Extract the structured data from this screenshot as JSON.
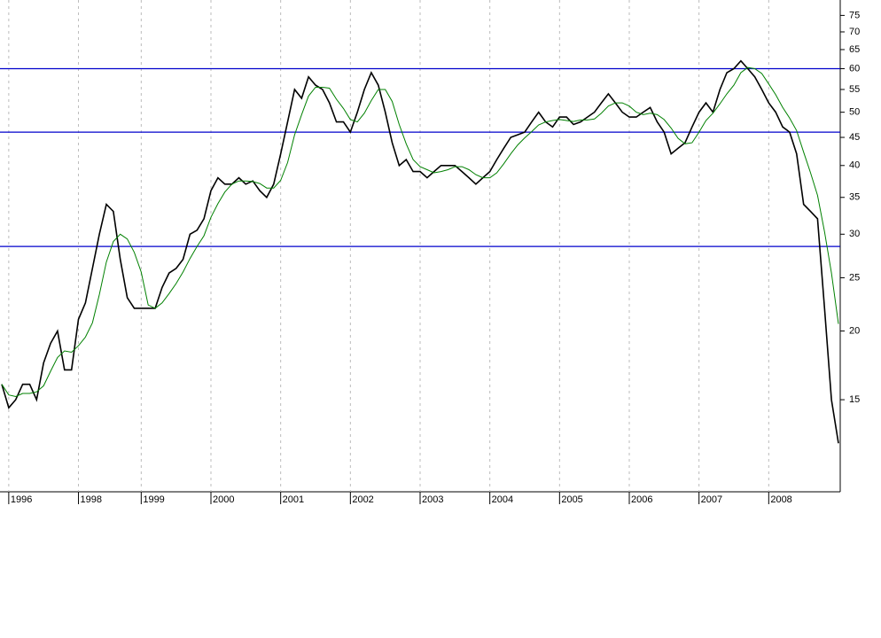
{
  "chart_data": {
    "type": "line",
    "log_scale": true,
    "grid": true,
    "x": [
      0,
      1,
      2,
      3,
      4,
      5,
      6,
      7,
      8,
      9,
      10,
      11,
      12,
      13,
      14,
      15,
      16,
      17,
      18,
      19,
      20,
      21,
      22,
      23,
      24,
      25,
      26,
      27,
      28,
      29,
      30,
      31,
      32,
      33,
      34,
      35,
      36,
      37,
      38,
      39,
      40,
      41,
      42,
      43,
      44,
      45,
      46,
      47,
      48,
      49,
      50,
      51,
      52,
      53,
      54,
      55,
      56,
      57,
      58,
      59,
      60,
      61,
      62,
      63,
      64,
      65,
      66,
      67,
      68,
      69,
      70,
      71,
      72,
      73,
      74,
      75,
      76,
      77,
      78,
      79,
      80,
      81,
      82,
      83,
      84,
      85,
      86,
      87,
      88,
      89,
      90,
      91,
      92,
      93,
      94,
      95,
      96,
      97,
      98,
      99,
      100,
      101,
      102,
      103,
      104,
      105,
      106,
      107,
      108,
      109,
      110,
      111,
      112,
      113,
      114,
      115,
      116,
      117,
      118,
      119,
      120
    ],
    "xlim": [
      0,
      120
    ],
    "xticks": [
      {
        "value": 1,
        "label": "1996"
      },
      {
        "value": 11,
        "label": "1998"
      },
      {
        "value": 20,
        "label": "1999"
      },
      {
        "value": 30,
        "label": "2000"
      },
      {
        "value": 40,
        "label": "2001"
      },
      {
        "value": 50,
        "label": "2002"
      },
      {
        "value": 60,
        "label": "2003"
      },
      {
        "value": 70,
        "label": "2004"
      },
      {
        "value": 80,
        "label": "2005"
      },
      {
        "value": 90,
        "label": "2006"
      },
      {
        "value": 100,
        "label": "2007"
      },
      {
        "value": 110,
        "label": "2008"
      }
    ],
    "ylim": [
      10.2,
      80
    ],
    "yticks": [
      15,
      20,
      25,
      30,
      35,
      40,
      45,
      50,
      55,
      60,
      65,
      70,
      75
    ],
    "hlines": [
      60,
      46,
      28.5
    ],
    "hline_color": "#0000cc",
    "series": [
      {
        "color": "#000000",
        "values": [
          16,
          14.5,
          15,
          16,
          16,
          15,
          17.5,
          19,
          20,
          17,
          17,
          21,
          22.5,
          26,
          30,
          34,
          33,
          27,
          23,
          22,
          22,
          22,
          22,
          24,
          25.5,
          26,
          27,
          30,
          30.5,
          32,
          36,
          38,
          37,
          37,
          38,
          37,
          37.5,
          36,
          35,
          37,
          42,
          48,
          55,
          53,
          58,
          56,
          55,
          52,
          48,
          48,
          46,
          50,
          55,
          59,
          56,
          50,
          44,
          40,
          41,
          39,
          39,
          38,
          39,
          40,
          40,
          40,
          39,
          38,
          37,
          38,
          39,
          41,
          43,
          45,
          45.5,
          46,
          48,
          50,
          48,
          47,
          49,
          49,
          47.5,
          48,
          49,
          50,
          52,
          54,
          52,
          50,
          49,
          49,
          50,
          51,
          48,
          46,
          42,
          43,
          44,
          47,
          50,
          52,
          50,
          55,
          59,
          60,
          62,
          60,
          58,
          55,
          52,
          50,
          47,
          46,
          42,
          34,
          33,
          32,
          22,
          15,
          12.5
        ]
      },
      {
        "color": "#008000",
        "values": [
          16,
          15.3,
          15.2,
          15.4,
          15.4,
          15.5,
          15.9,
          16.9,
          17.9,
          18.4,
          18.3,
          18.8,
          19.5,
          20.7,
          23.3,
          26.7,
          29.1,
          30,
          29.4,
          27.8,
          25.6,
          22.3,
          22,
          22.5,
          23.4,
          24.4,
          25.6,
          27.1,
          28.5,
          29.8,
          32.2,
          34.1,
          35.8,
          37,
          37.5,
          37.5,
          37.4,
          37.1,
          36.4,
          36.4,
          37.6,
          40.5,
          45.5,
          49.5,
          53.5,
          55.5,
          55.5,
          55.3,
          52.8,
          50.8,
          48.5,
          48,
          49.8,
          52.5,
          55,
          55,
          52.3,
          47.5,
          43.8,
          41,
          39.8,
          39.3,
          38.8,
          39,
          39.3,
          39.8,
          39.8,
          39.3,
          38.5,
          38,
          38,
          38.8,
          40.3,
          42,
          43.6,
          44.9,
          46.1,
          47.4,
          48,
          48.3,
          48.5,
          48.3,
          48.1,
          48.4,
          48.4,
          48.6,
          49.8,
          51.3,
          52,
          52,
          51.3,
          50,
          49.5,
          49.8,
          49.5,
          48.5,
          46.8,
          44.8,
          43.8,
          44,
          46,
          48.3,
          49.8,
          51.8,
          54,
          56,
          59,
          60.3,
          60,
          58.8,
          56.3,
          53.8,
          51,
          48.8,
          46.3,
          42.3,
          38.8,
          35.3,
          30.3,
          25.5,
          20.6
        ]
      }
    ]
  }
}
